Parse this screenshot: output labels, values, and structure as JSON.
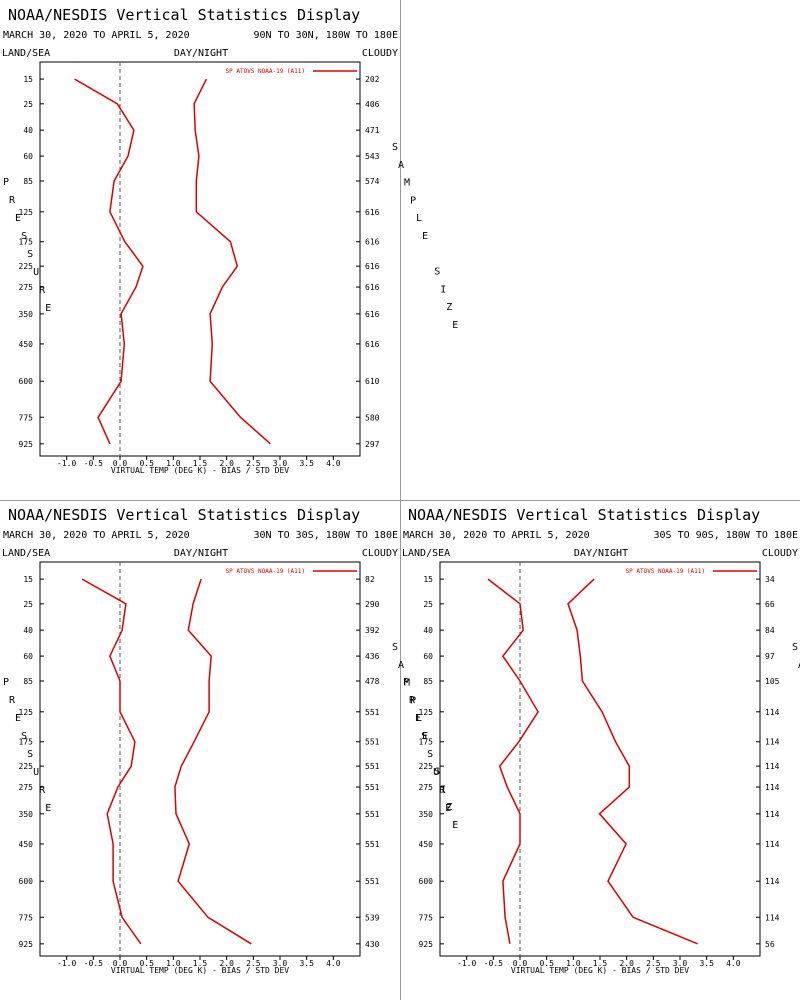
{
  "chart_data": [
    {
      "type": "line",
      "title": "NOAA/NESDIS Vertical Statistics Display",
      "subtitle": "MARCH 30, 2020 TO APRIL 5, 2020",
      "region": "90N TO 30N, 180W TO 180E",
      "left_label": "LAND/SEA",
      "center_label": "DAY/NIGHT",
      "right_label": "CLOUDY",
      "legend_label": "SP ATOVS NOAA-19 (A11)",
      "xlabel": "VIRTUAL TEMP (DEG K) - BIAS / STD DEV",
      "ylabel": "PRESSURE",
      "y2label": "SAMPLE SIZE",
      "y": [
        15,
        25,
        40,
        60,
        85,
        125,
        175,
        225,
        275,
        350,
        450,
        600,
        775,
        925
      ],
      "sample_size": [
        202,
        406,
        471,
        543,
        574,
        616,
        616,
        616,
        616,
        616,
        616,
        610,
        580,
        297
      ],
      "series": [
        {
          "color": "#dd0000",
          "values": [
            -0.85,
            -0.05,
            0.26,
            0.15,
            -0.11,
            -0.19,
            0.09,
            0.43,
            0.3,
            0.02,
            0.08,
            0.02,
            -0.41,
            -0.19
          ]
        },
        {
          "color": "#dd0000",
          "values": [
            1.62,
            1.39,
            1.41,
            1.48,
            1.43,
            1.43,
            2.07,
            2.2,
            1.92,
            1.69,
            1.73,
            1.69,
            2.26,
            2.82
          ]
        }
      ],
      "xlim": [
        -1.5,
        4.5
      ],
      "ylim": [
        10,
        1000
      ],
      "y_inverted": true,
      "xticks": [
        {
          "value": -1,
          "label": "-1.0"
        },
        {
          "value": -0.5,
          "label": "-0.5"
        },
        {
          "value": 0,
          "label": "0.0"
        },
        0.5,
        {
          "value": 1,
          "label": "1.0"
        },
        1.5,
        {
          "value": 2,
          "label": "2.0"
        },
        2.5,
        {
          "value": 3,
          "label": "3.0"
        },
        3.5,
        {
          "value": 4,
          "label": "4.0"
        }
      ]
    },
    {
      "type": "line",
      "title": "NOAA/NESDIS Vertical Statistics Display",
      "subtitle": "MARCH 30, 2020 TO APRIL 5, 2020",
      "region": "30N TO 30S, 180W TO 180E",
      "left_label": "LAND/SEA",
      "center_label": "DAY/NIGHT",
      "right_label": "CLOUDY",
      "legend_label": "SP ATOVS NOAA-19 (A11)",
      "xlabel": "VIRTUAL TEMP (DEG K) - BIAS / STD DEV",
      "ylabel": "PRESSURE",
      "y2label": "SAMPLE SIZE",
      "y": [
        15,
        25,
        40,
        60,
        85,
        125,
        175,
        225,
        275,
        350,
        450,
        600,
        775,
        925
      ],
      "sample_size": [
        82,
        290,
        392,
        436,
        478,
        551,
        551,
        551,
        551,
        551,
        551,
        551,
        539,
        430
      ],
      "series": [
        {
          "color": "#dd0000",
          "values": [
            -0.71,
            0.11,
            0.04,
            -0.19,
            0,
            0,
            0.28,
            0.21,
            -0.04,
            -0.24,
            -0.13,
            -0.13,
            0.04,
            0.39
          ]
        },
        {
          "color": "#dd0000",
          "values": [
            1.52,
            1.37,
            1.28,
            1.71,
            1.67,
            1.67,
            1.39,
            1.15,
            1.03,
            1.05,
            1.3,
            1.09,
            1.65,
            2.46
          ]
        }
      ],
      "xlim": [
        -1.5,
        4.5
      ],
      "ylim": [
        10,
        1000
      ],
      "y_inverted": true,
      "xticks": [
        {
          "value": -1,
          "label": "-1.0"
        },
        {
          "value": -0.5,
          "label": "-0.5"
        },
        {
          "value": 0,
          "label": "0.0"
        },
        0.5,
        {
          "value": 1,
          "label": "1.0"
        },
        1.5,
        {
          "value": 2,
          "label": "2.0"
        },
        2.5,
        {
          "value": 3,
          "label": "3.0"
        },
        3.5,
        {
          "value": 4,
          "label": "4.0"
        }
      ]
    },
    {
      "type": "line",
      "title": "NOAA/NESDIS Vertical Statistics Display",
      "subtitle": "MARCH 30, 2020 TO APRIL 5, 2020",
      "region": "30S TO 90S, 180W TO 180E",
      "left_label": "LAND/SEA",
      "center_label": "DAY/NIGHT",
      "right_label": "CLOUDY",
      "legend_label": "SP ATOVS NOAA-19 (A11)",
      "xlabel": "VIRTUAL TEMP (DEG K) - BIAS / STD DEV",
      "ylabel": "PRESSURE",
      "y2label": "SAMPLE SIZE",
      "y": [
        15,
        25,
        40,
        60,
        85,
        125,
        175,
        225,
        275,
        350,
        450,
        600,
        775,
        925
      ],
      "sample_size": [
        34,
        66,
        84,
        97,
        105,
        114,
        114,
        114,
        114,
        114,
        114,
        114,
        114,
        56
      ],
      "series": [
        {
          "color": "#dd0000",
          "values": [
            -0.6,
            0,
            0.06,
            -0.32,
            0,
            0.34,
            -0.02,
            -0.38,
            -0.24,
            0,
            0,
            -0.32,
            -0.28,
            -0.19
          ]
        },
        {
          "color": "#dd0000",
          "values": [
            1.39,
            0.9,
            1.07,
            1.13,
            1.17,
            1.54,
            1.79,
            2.05,
            2.05,
            1.49,
            1.99,
            1.65,
            2.12,
            3.33
          ]
        }
      ],
      "xlim": [
        -1.5,
        4.5
      ],
      "ylim": [
        10,
        1000
      ],
      "y_inverted": true,
      "xticks": [
        {
          "value": -1,
          "label": "-1.0"
        },
        {
          "value": -0.5,
          "label": "-0.5"
        },
        {
          "value": 0,
          "label": "0.0"
        },
        0.5,
        {
          "value": 1,
          "label": "1.0"
        },
        1.5,
        {
          "value": 2,
          "label": "2.0"
        },
        2.5,
        {
          "value": 3,
          "label": "3.0"
        },
        3.5,
        {
          "value": 4,
          "label": "4.0"
        }
      ]
    }
  ]
}
